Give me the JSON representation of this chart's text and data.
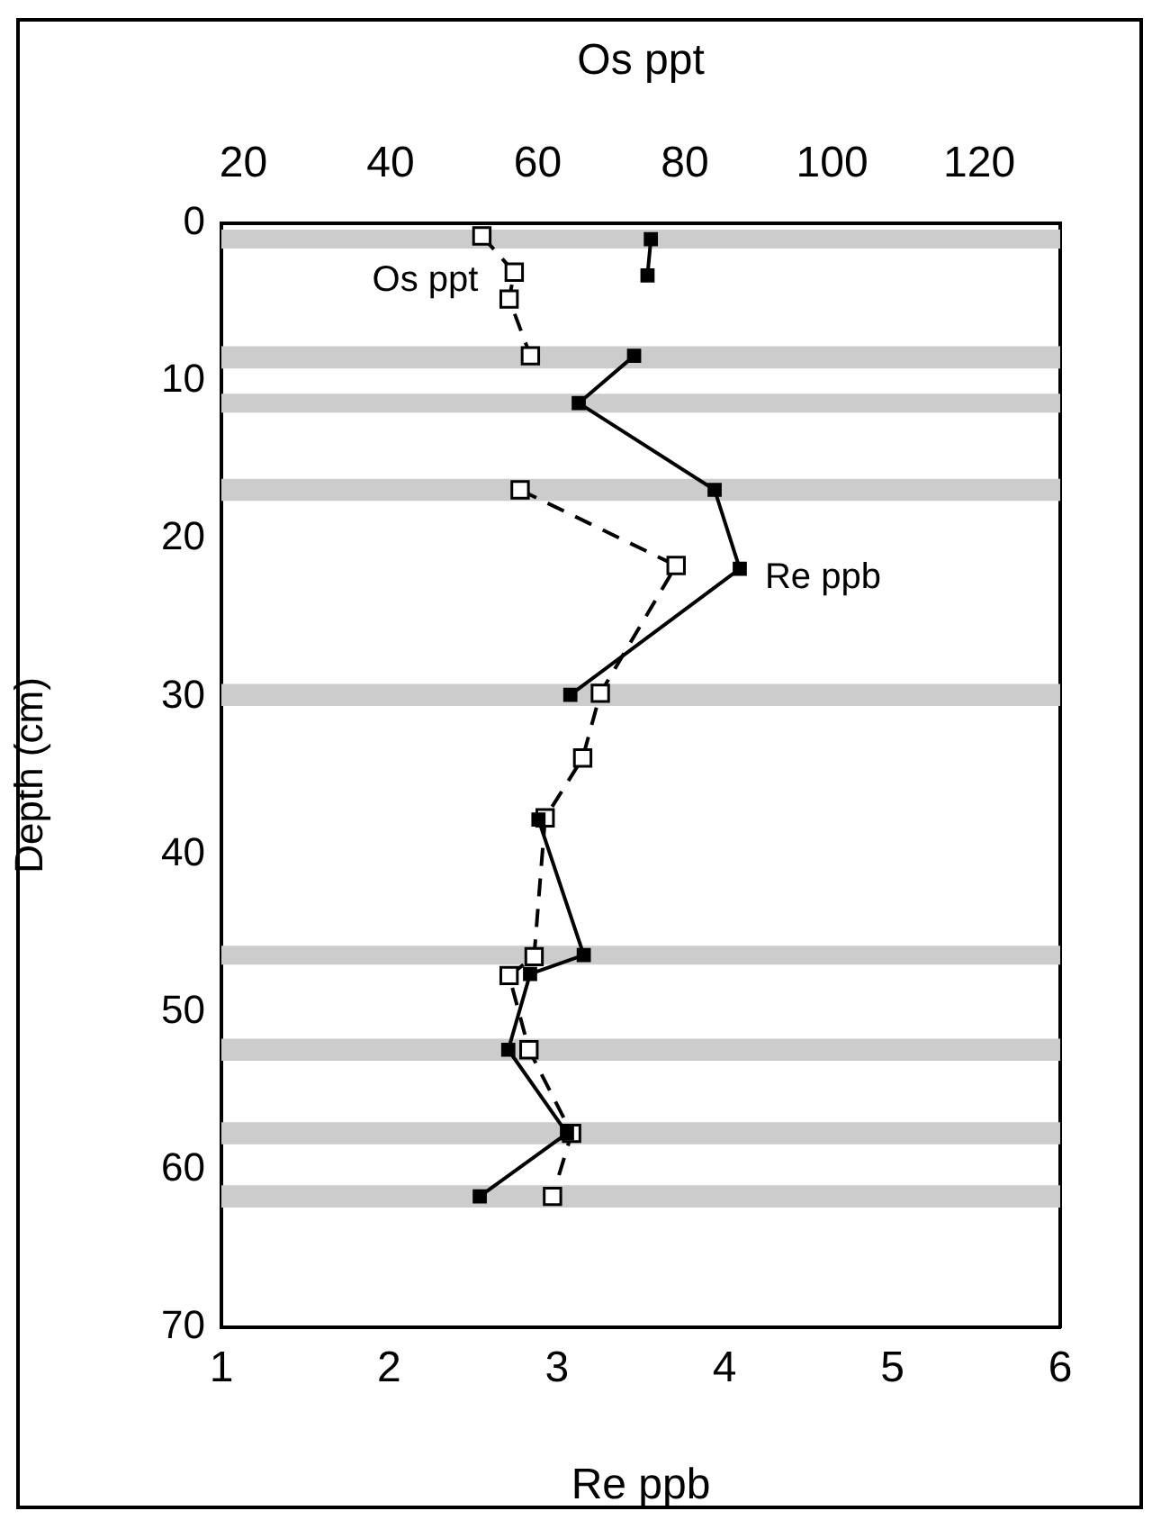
{
  "chart_data": {
    "type": "line",
    "xlabel": "Re ppb",
    "x2label": "Os ppt",
    "ylabel": "Depth (cm)",
    "xlim": [
      1,
      6
    ],
    "xticks": [
      1,
      2,
      3,
      4,
      5,
      6
    ],
    "x2lim": [
      17,
      131
    ],
    "x2ticks": [
      20,
      40,
      60,
      80,
      100,
      120
    ],
    "ylim": [
      70,
      0
    ],
    "yticks": [
      0,
      10,
      20,
      30,
      40,
      50,
      60,
      70
    ],
    "grid": false,
    "legend": false,
    "marker": "square",
    "bands": [
      {
        "axis": "y",
        "from": 0.4,
        "to": 1.6,
        "color": "#cccccc"
      },
      {
        "axis": "y",
        "from": 7.8,
        "to": 9.2,
        "color": "#cccccc"
      },
      {
        "axis": "y",
        "from": 10.8,
        "to": 12.0,
        "color": "#cccccc"
      },
      {
        "axis": "y",
        "from": 16.2,
        "to": 17.6,
        "color": "#cccccc"
      },
      {
        "axis": "y",
        "from": 29.2,
        "to": 30.6,
        "color": "#cccccc"
      },
      {
        "axis": "y",
        "from": 45.8,
        "to": 47.0,
        "color": "#cccccc"
      },
      {
        "axis": "y",
        "from": 51.7,
        "to": 53.1,
        "color": "#cccccc"
      },
      {
        "axis": "y",
        "from": 57.0,
        "to": 58.4,
        "color": "#cccccc"
      },
      {
        "axis": "y",
        "from": 61.0,
        "to": 62.4,
        "color": "#cccccc"
      }
    ],
    "series": [
      {
        "name": "Re ppb",
        "color": "#000000",
        "line_style": "solid",
        "x": [
          3.56,
          3.54,
          null,
          3.46,
          3.13,
          3.94,
          4.09,
          3.08,
          null,
          2.89,
          3.16,
          2.84,
          2.71,
          3.06,
          2.54
        ],
        "values": [
          1.0,
          3.3,
          null,
          8.4,
          11.4,
          16.9,
          21.9,
          29.9,
          null,
          37.8,
          46.4,
          47.6,
          52.4,
          57.7,
          61.7
        ]
      },
      {
        "name": "Os ppt",
        "color": "#000000",
        "line_style": "dashed",
        "axis": "x2",
        "x": [
          52.4,
          56.8,
          56.1,
          59.0,
          null,
          57.6,
          78.8,
          68.5,
          66.1,
          61.0,
          59.5,
          56.1,
          58.8,
          64.6,
          62.0
        ],
        "values": [
          0.8,
          3.1,
          4.8,
          8.4,
          null,
          16.9,
          21.7,
          29.8,
          33.9,
          37.7,
          46.5,
          47.7,
          52.4,
          57.7,
          61.7
        ]
      }
    ]
  }
}
